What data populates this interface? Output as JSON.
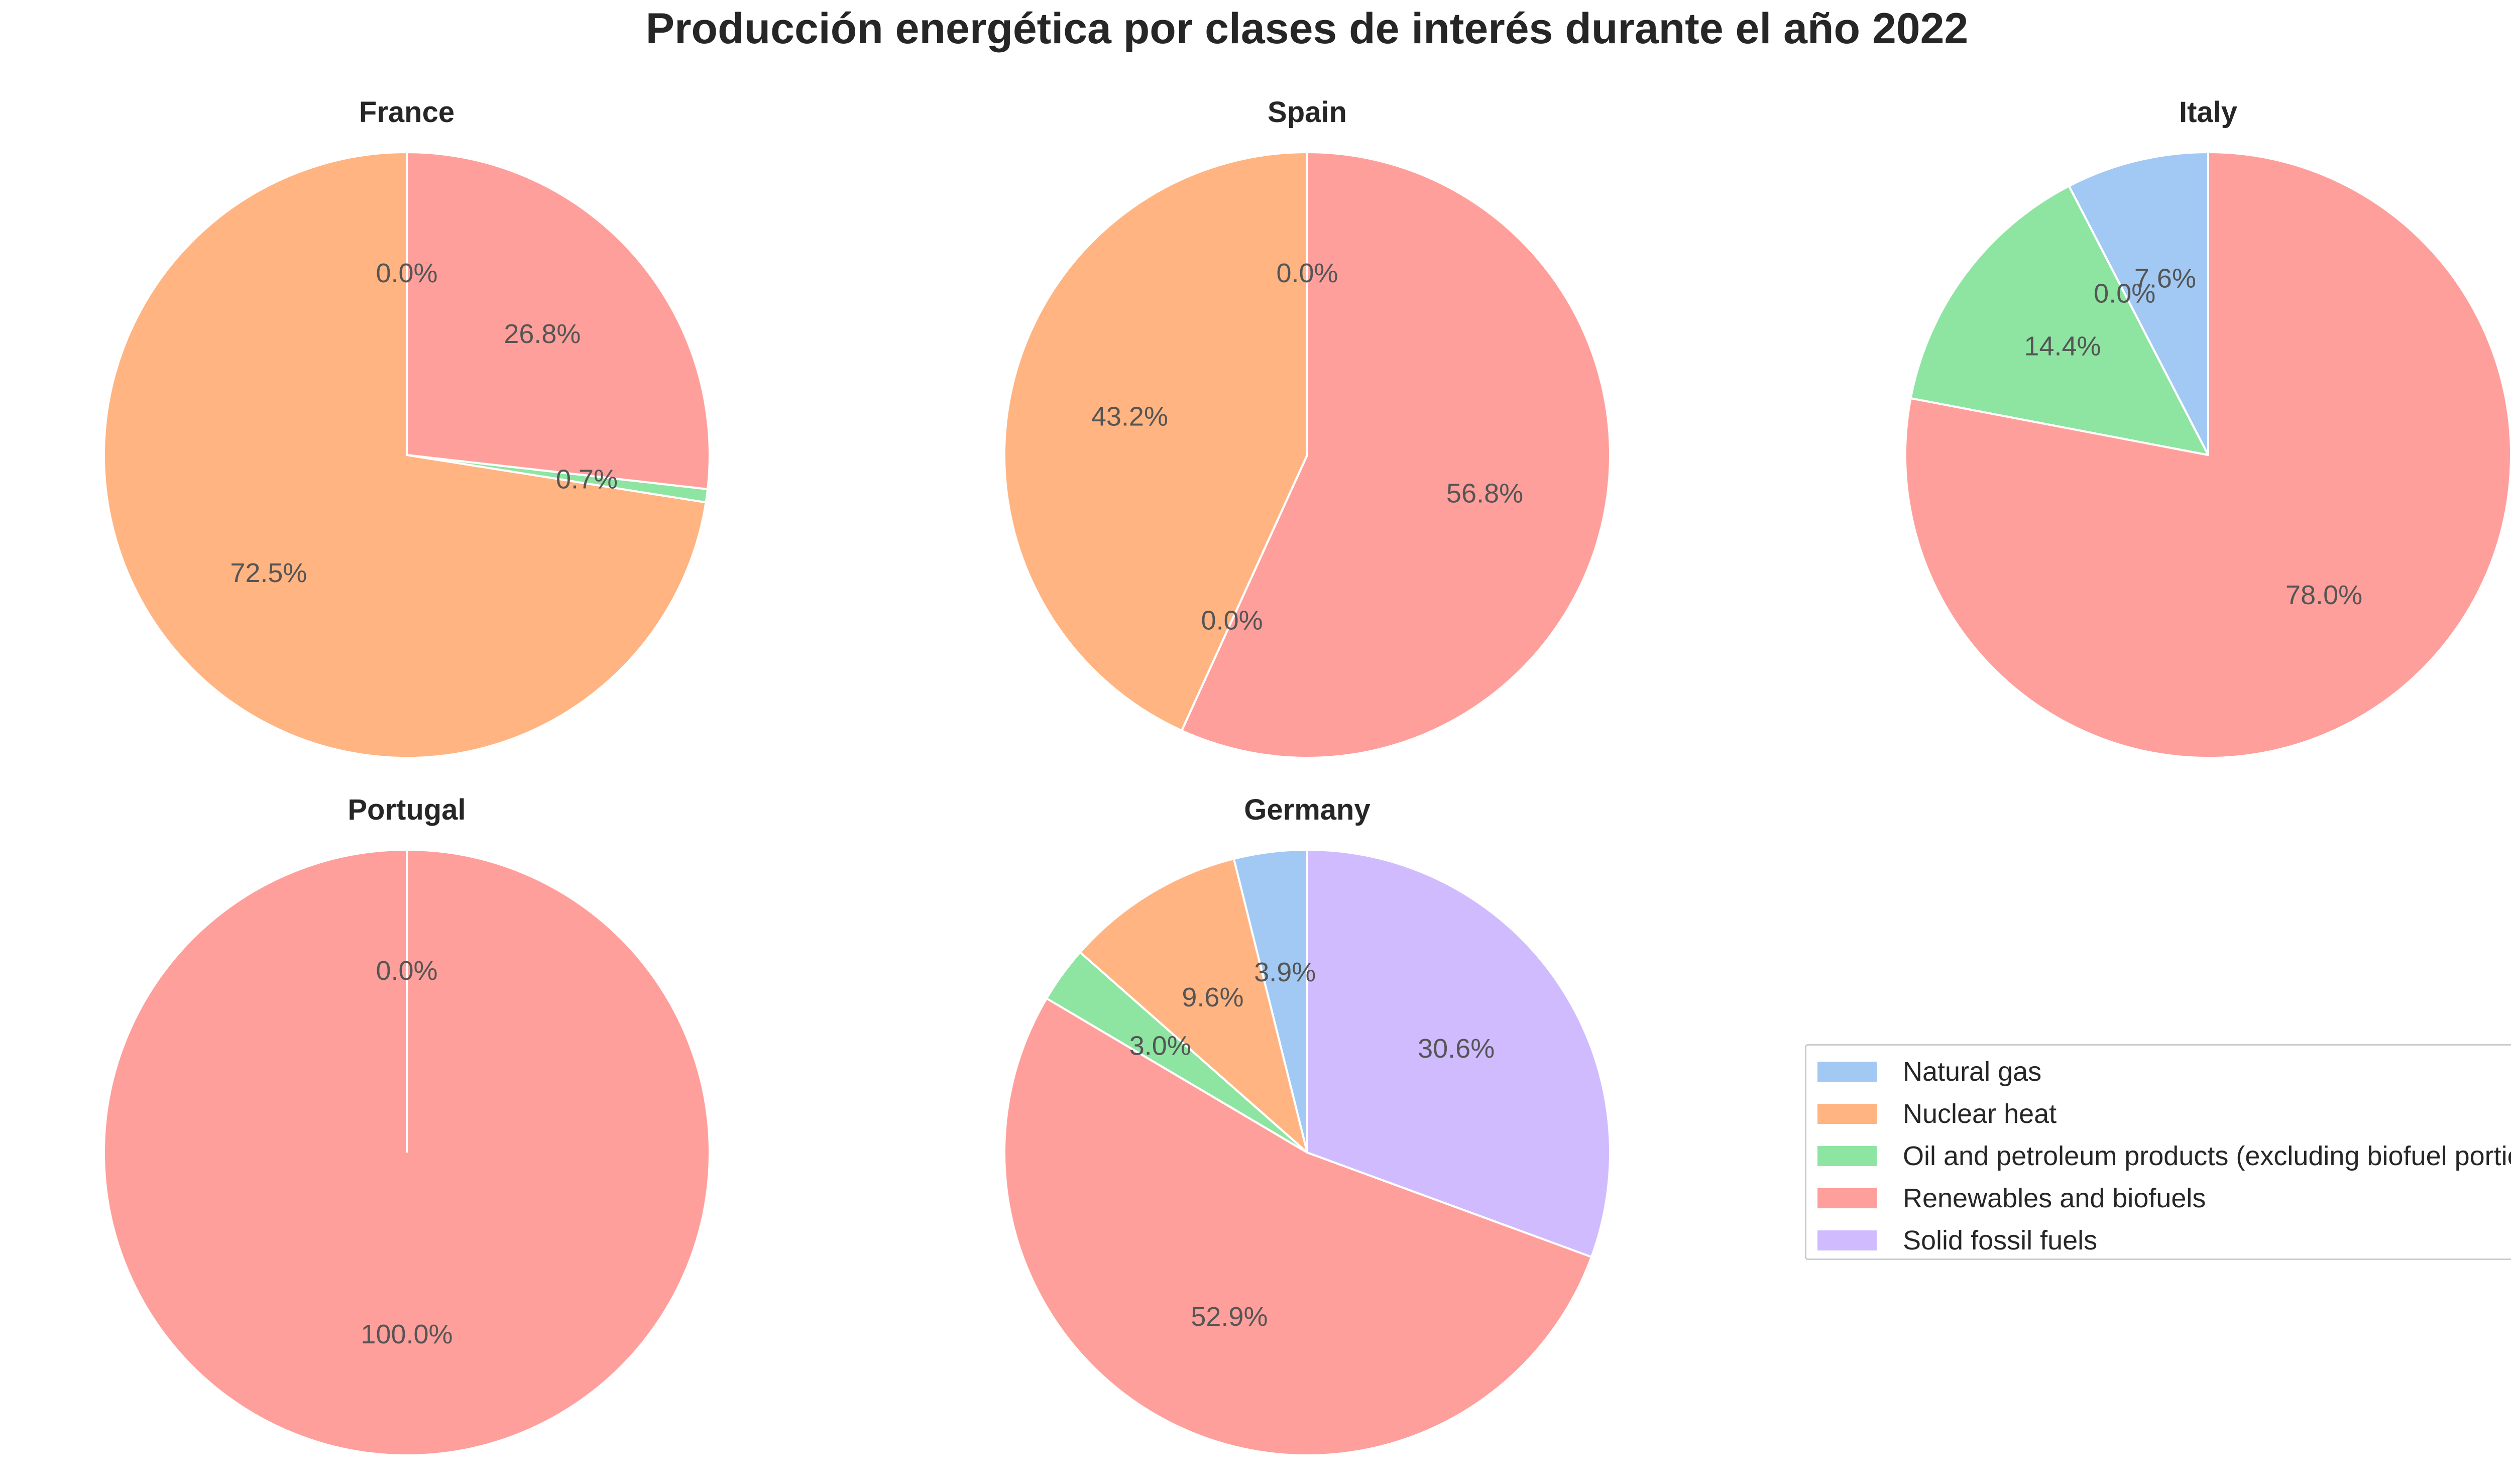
{
  "title": "Producción energética por clases de interés durante el año 2022",
  "categories": [
    "Natural gas",
    "Nuclear heat",
    "Oil and petroleum products (excluding biofuel portion)",
    "Renewables and biofuels",
    "Solid fossil fuels"
  ],
  "colors": [
    "#a1c9f4",
    "#ffb482",
    "#8de5a1",
    "#ff9f9b",
    "#d0bbff"
  ],
  "chart_data": [
    {
      "type": "pie",
      "title": "France",
      "labels": [
        "Natural gas",
        "Nuclear heat",
        "Oil and petroleum products (excluding biofuel portion)",
        "Renewables and biofuels"
      ],
      "values": [
        0.0,
        72.5,
        0.7,
        26.8
      ],
      "pct_labels": [
        "0.0%",
        "72.5%",
        "0.7%",
        "26.8%"
      ],
      "start_angle": 90,
      "direction": "counterclockwise"
    },
    {
      "type": "pie",
      "title": "Spain",
      "labels": [
        "Natural gas",
        "Nuclear heat",
        "Oil and petroleum products (excluding biofuel portion)",
        "Renewables and biofuels"
      ],
      "values": [
        0.0,
        43.2,
        0.0,
        56.8
      ],
      "pct_labels": [
        "0.0%",
        "43.2%",
        "0.0%",
        "56.8%"
      ],
      "start_angle": 90,
      "direction": "counterclockwise"
    },
    {
      "type": "pie",
      "title": "Italy",
      "labels": [
        "Natural gas",
        "Nuclear heat",
        "Oil and petroleum products (excluding biofuel portion)",
        "Renewables and biofuels"
      ],
      "values": [
        7.6,
        0.0,
        14.4,
        78.0
      ],
      "pct_labels": [
        "7.6%",
        "0.0%",
        "14.4%",
        "78.0%"
      ],
      "start_angle": 90,
      "direction": "counterclockwise"
    },
    {
      "type": "pie",
      "title": "Portugal",
      "labels": [
        "Natural gas",
        "Renewables and biofuels"
      ],
      "values": [
        0.0,
        100.0
      ],
      "pct_labels": [
        "0.0%",
        "100.0%"
      ],
      "start_angle": 90,
      "direction": "counterclockwise"
    },
    {
      "type": "pie",
      "title": "Germany",
      "labels": [
        "Natural gas",
        "Nuclear heat",
        "Oil and petroleum products (excluding biofuel portion)",
        "Renewables and biofuels",
        "Solid fossil fuels"
      ],
      "values": [
        3.9,
        9.6,
        3.0,
        52.9,
        30.6
      ],
      "pct_labels": [
        "3.9%",
        "9.6%",
        "3.0%",
        "52.9%",
        "30.6%"
      ],
      "start_angle": 90,
      "direction": "counterclockwise"
    }
  ],
  "legend": {
    "position": "lower-right",
    "items": [
      {
        "label": "Natural gas",
        "color": "#a1c9f4"
      },
      {
        "label": "Nuclear heat",
        "color": "#ffb482"
      },
      {
        "label": "Oil and petroleum products (excluding biofuel portion)",
        "color": "#8de5a1"
      },
      {
        "label": "Renewables and biofuels",
        "color": "#ff9f9b"
      },
      {
        "label": "Solid fossil fuels",
        "color": "#d0bbff"
      }
    ]
  }
}
